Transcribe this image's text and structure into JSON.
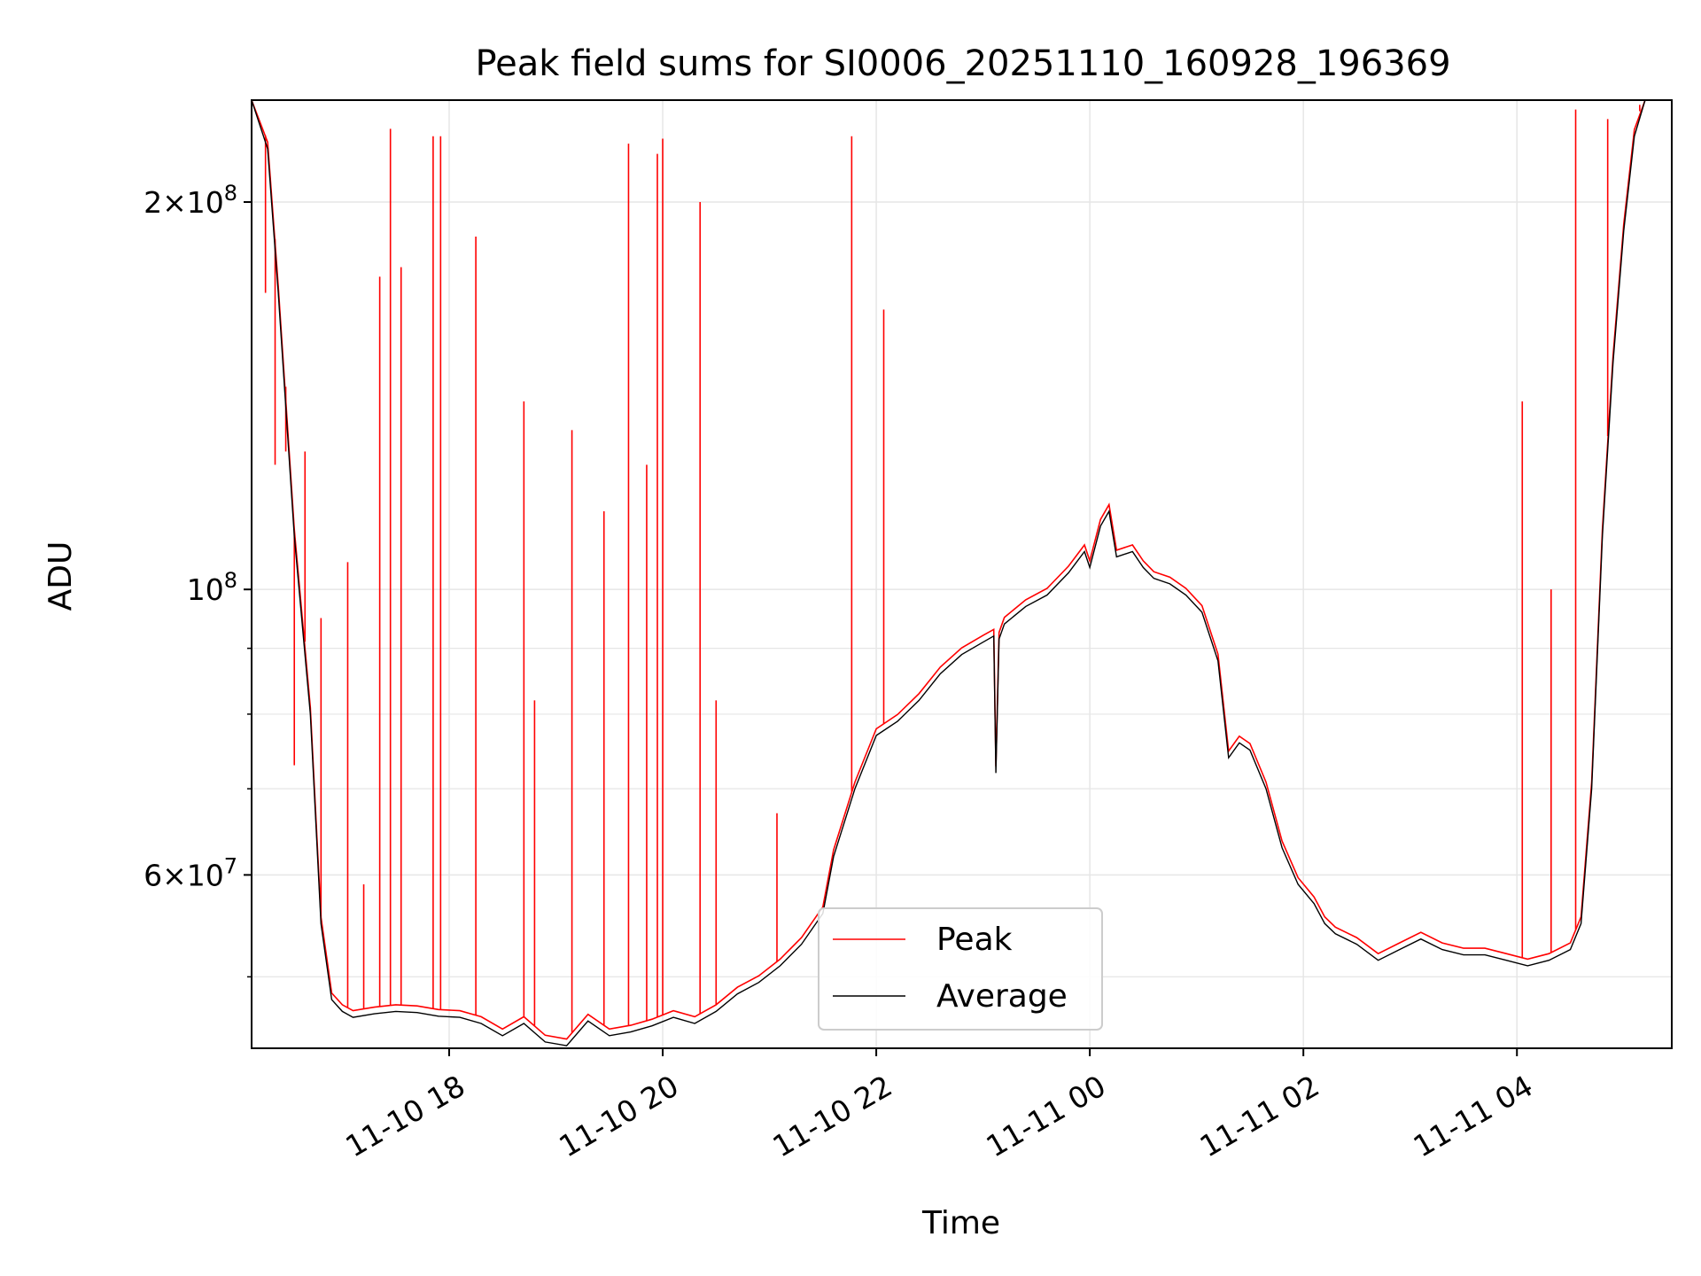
{
  "chart_data": {
    "type": "line",
    "title": "Peak field sums for SI0006_20251110_160928_196369",
    "xlabel": "Time",
    "ylabel": "ADU",
    "yscale": "log",
    "ylim": [
      44000000,
      240000000
    ],
    "xlim_hours_since_2025-11-10T16:00": [
      0.15,
      13.45
    ],
    "grid": true,
    "legend_position": "lower-center",
    "colors": {
      "peak": "#ff0000",
      "average": "#000000",
      "grid": "#e6e6e6",
      "axes": "#000000"
    },
    "x_ticks": [
      {
        "hour": 2,
        "label": "11-10 18"
      },
      {
        "hour": 4,
        "label": "11-10 20"
      },
      {
        "hour": 6,
        "label": "11-10 22"
      },
      {
        "hour": 8,
        "label": "11-11 00"
      },
      {
        "hour": 10,
        "label": "11-11 02"
      },
      {
        "hour": 12,
        "label": "11-11 04"
      }
    ],
    "y_major_ticks": [
      {
        "value": 60000000,
        "mantissa": "6",
        "exponent": "7"
      },
      {
        "value": 100000000,
        "mantissa": "",
        "exponent": "8"
      },
      {
        "value": 200000000,
        "mantissa": "2",
        "exponent": "8"
      }
    ],
    "y_minor_ticks": [
      50000000,
      70000000,
      80000000,
      90000000
    ],
    "series": [
      {
        "name": "Average",
        "x_hours": [
          0.15,
          0.3,
          0.4,
          0.55,
          0.7,
          0.8,
          0.9,
          1.0,
          1.1,
          1.3,
          1.5,
          1.7,
          1.9,
          2.1,
          2.3,
          2.5,
          2.7,
          2.9,
          3.1,
          3.3,
          3.5,
          3.7,
          3.9,
          4.1,
          4.3,
          4.5,
          4.7,
          4.9,
          5.1,
          5.3,
          5.5,
          5.6,
          5.8,
          6.0,
          6.2,
          6.4,
          6.6,
          6.8,
          7.0,
          7.1,
          7.12,
          7.15,
          7.2,
          7.4,
          7.6,
          7.8,
          7.95,
          8.0,
          8.1,
          8.18,
          8.25,
          8.4,
          8.5,
          8.6,
          8.75,
          8.9,
          9.05,
          9.2,
          9.3,
          9.4,
          9.5,
          9.65,
          9.8,
          9.95,
          10.1,
          10.2,
          10.3,
          10.5,
          10.7,
          10.9,
          11.1,
          11.3,
          11.5,
          11.7,
          11.9,
          12.1,
          12.3,
          12.5,
          12.6,
          12.7,
          12.8,
          12.9,
          13.0,
          13.1,
          13.2,
          13.3,
          13.45
        ],
        "values": [
          240000000,
          220000000,
          170000000,
          110000000,
          80000000,
          55000000,
          48000000,
          47000000,
          46500000,
          46800000,
          47000000,
          46900000,
          46600000,
          46500000,
          46000000,
          45000000,
          46000000,
          44500000,
          44200000,
          46200000,
          45000000,
          45300000,
          45800000,
          46500000,
          46000000,
          47000000,
          48500000,
          49500000,
          51000000,
          53000000,
          56000000,
          62000000,
          70000000,
          77000000,
          79000000,
          82000000,
          86000000,
          89000000,
          91000000,
          92000000,
          72000000,
          91500000,
          94000000,
          97000000,
          99000000,
          103000000,
          107000000,
          104000000,
          112000000,
          115000000,
          106000000,
          107000000,
          104000000,
          102000000,
          101000000,
          99000000,
          96000000,
          88000000,
          74000000,
          76000000,
          75000000,
          70000000,
          63000000,
          59000000,
          57000000,
          55000000,
          54000000,
          53000000,
          51500000,
          52500000,
          53500000,
          52500000,
          52000000,
          52000000,
          51500000,
          51000000,
          51500000,
          52500000,
          55000000,
          70000000,
          110000000,
          150000000,
          190000000,
          225000000,
          240000000,
          240000000,
          240000000
        ]
      },
      {
        "name": "Peak",
        "offset_ratio": 1.012,
        "spikes": [
          {
            "hour": 0.28,
            "value": 170000000
          },
          {
            "hour": 0.37,
            "value": 125000000
          },
          {
            "hour": 0.47,
            "value": 128000000
          },
          {
            "hour": 0.55,
            "value": 73000000
          },
          {
            "hour": 0.65,
            "value": 128000000
          },
          {
            "hour": 0.8,
            "value": 95000000
          },
          {
            "hour": 1.05,
            "value": 105000000
          },
          {
            "hour": 1.2,
            "value": 59000000
          },
          {
            "hour": 1.35,
            "value": 175000000
          },
          {
            "hour": 1.45,
            "value": 228000000
          },
          {
            "hour": 1.55,
            "value": 178000000
          },
          {
            "hour": 1.85,
            "value": 225000000
          },
          {
            "hour": 1.92,
            "value": 225000000
          },
          {
            "hour": 2.25,
            "value": 188000000
          },
          {
            "hour": 2.7,
            "value": 140000000
          },
          {
            "hour": 2.8,
            "value": 82000000
          },
          {
            "hour": 3.15,
            "value": 133000000
          },
          {
            "hour": 3.45,
            "value": 115000000
          },
          {
            "hour": 3.68,
            "value": 222000000
          },
          {
            "hour": 3.85,
            "value": 125000000
          },
          {
            "hour": 3.95,
            "value": 218000000
          },
          {
            "hour": 4.0,
            "value": 224000000
          },
          {
            "hour": 4.35,
            "value": 200000000
          },
          {
            "hour": 4.5,
            "value": 82000000
          },
          {
            "hour": 5.07,
            "value": 67000000
          },
          {
            "hour": 5.77,
            "value": 225000000
          },
          {
            "hour": 6.07,
            "value": 165000000
          },
          {
            "hour": 12.05,
            "value": 140000000
          },
          {
            "hour": 12.32,
            "value": 100000000
          },
          {
            "hour": 12.55,
            "value": 236000000
          },
          {
            "hour": 12.85,
            "value": 232000000
          },
          {
            "hour": 13.15,
            "value": 238000000
          }
        ]
      }
    ]
  }
}
